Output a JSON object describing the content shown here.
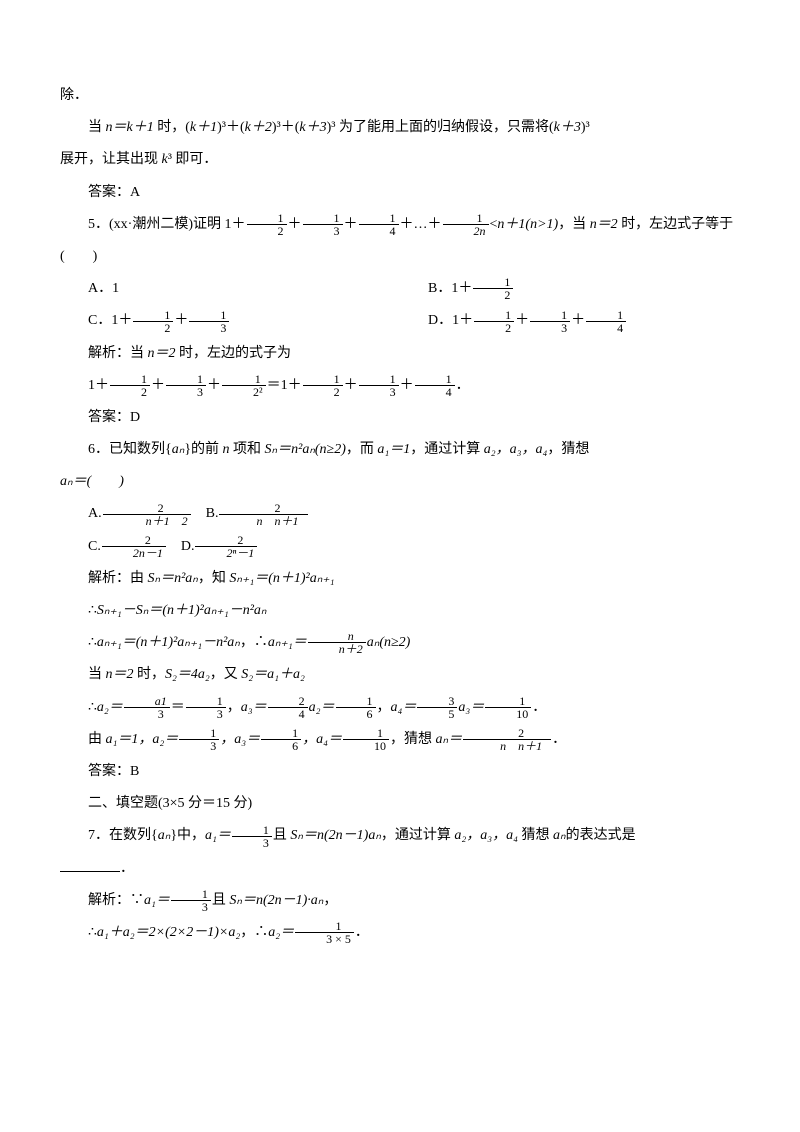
{
  "p1": "除．",
  "p2a": "当 ",
  "p2_nk1": "n＝k＋1 ",
  "p2b": "时，(",
  "p2_k1": "k＋1",
  "p2c": ")³＋(",
  "p2_k2": "k＋2",
  "p2d": ")³＋(",
  "p2_k3": "k＋3",
  "p2e": ")³ 为了能用上面的归纳假设，只需将(",
  "p2_k4": "k＋3",
  "p2f": ")³",
  "p3a": "展开，让其出现 ",
  "p3_k": "k",
  "p3b": "³ 即可．",
  "ans4": "答案：A",
  "q5a": "5．(xx·潮州二模)证明 1＋",
  "q5b": "＋",
  "q5c": "＋",
  "q5d": "＋…＋",
  "q5e": "<",
  "q5_n1": "n＋1(n>1)",
  "q5f": "，当 ",
  "q5_n2": "n＝2 ",
  "q5g": "时，左边式子等于(　　)",
  "q5_optA": "A．1",
  "q5_optB": "B．1＋",
  "q5_optC": "C．1＋",
  "q5_optC2": "＋",
  "q5_optD": "D．1＋",
  "q5_optD2": "＋",
  "q5_optD3": "＋",
  "q5_sol1": "解析：当 ",
  "q5_sol_n": "n＝2 ",
  "q5_sol2": "时，左边的式子为",
  "q5_sol3": "1＋",
  "q5_sol4": "＋",
  "q5_sol5": "＋",
  "q5_sol6": "＝1＋",
  "q5_sol7": "＋",
  "q5_sol8": "＋",
  "q5_sol9": "．",
  "ans5": "答案：D",
  "q6a": "6．已知数列{",
  "q6_an": "aₙ",
  "q6b": "}的前 ",
  "q6_n": "n ",
  "q6c": "项和 ",
  "q6_sn": "Sₙ＝n²aₙ(n≥2)",
  "q6d": "，而 ",
  "q6_a1": "a₁＝1",
  "q6e": "，通过计算 ",
  "q6_a234": "a₂，a₃，a₄",
  "q6f": "，猜想",
  "q6g": "aₙ＝(　　)",
  "q6_optA": "A.",
  "q6_optB": "B.",
  "q6_optC": "C.",
  "q6_optD": "D.",
  "q6_sol1a": "解析：由 ",
  "q6_sol1b": "Sₙ＝n²aₙ",
  "q6_sol1c": "，知 ",
  "q6_sol1d": "Sₙ₊₁＝(n＋1)²aₙ₊₁",
  "q6_sol2a": "∴",
  "q6_sol2b": "Sₙ₊₁－Sₙ＝(n＋1)²aₙ₊₁－n²aₙ",
  "q6_sol3a": "∴",
  "q6_sol3b": "aₙ₊₁＝(n＋1)²aₙ₊₁－n²aₙ",
  "q6_sol3c": "，∴",
  "q6_sol3d": "aₙ₊₁＝",
  "q6_sol3e": "aₙ(n≥2)",
  "q6_sol4a": "当 ",
  "q6_sol4b": "n＝2 ",
  "q6_sol4c": "时，",
  "q6_sol4d": "S₂＝4a₂",
  "q6_sol4e": "，又 ",
  "q6_sol4f": "S₂＝a₁＋a₂",
  "q6_sol5a": "∴",
  "q6_sol5b": "a₂＝",
  "q6_sol5c": "＝",
  "q6_sol5d": "，",
  "q6_sol5e": "a₃＝",
  "q6_sol5f": "a₂＝",
  "q6_sol5g": "，",
  "q6_sol5h": "a₄＝",
  "q6_sol5i": "a₃＝",
  "q6_sol5j": "．",
  "q6_sol6a": "由 ",
  "q6_sol6b": "a₁＝1，a₂＝",
  "q6_sol6c": "，a₃＝",
  "q6_sol6d": "，a₄＝",
  "q6_sol6e": "，猜想 ",
  "q6_sol6f": "aₙ＝",
  "q6_sol6g": "．",
  "ans6": "答案：B",
  "sec2": "二、填空题(3×5 分＝15 分)",
  "q7a": "7．在数列{",
  "q7b": "}中，",
  "q7c": "a₁＝",
  "q7d": "且 ",
  "q7e": "Sₙ＝n(2n－1)aₙ",
  "q7f": "，通过计算 ",
  "q7g": "a₂，a₃，a₄ ",
  "q7h": "猜想 ",
  "q7i": "aₙ",
  "q7j": "的表达式是",
  "q7k": "．",
  "q7_sol1a": "解析：∵",
  "q7_sol1b": "a₁＝",
  "q7_sol1c": "且 ",
  "q7_sol1d": "Sₙ＝n(2n－1)·aₙ",
  "q7_sol1e": "，",
  "q7_sol2a": "∴",
  "q7_sol2b": "a₁＋a₂＝2×(2×2－1)×a₂",
  "q7_sol2c": "，∴",
  "q7_sol2d": "a₂＝",
  "q7_sol2e": "．",
  "frac_1_2": {
    "n": "1",
    "d": "2"
  },
  "frac_1_3": {
    "n": "1",
    "d": "3"
  },
  "frac_1_4": {
    "n": "1",
    "d": "4"
  },
  "frac_1_2n": {
    "n": "1",
    "d": "2n"
  },
  "frac_1_22": {
    "n": "1",
    "d": "2²"
  },
  "frac_2_n1sq": {
    "n": "2",
    "d": "　n＋1　2"
  },
  "frac_2_nn1": {
    "n": "2",
    "d": "n　n＋1　"
  },
  "frac_2_2nm1": {
    "n": "2",
    "d": "2n－1"
  },
  "frac_2_2n_m1": {
    "n": "2",
    "d": "2ⁿ－1"
  },
  "frac_n_n2": {
    "n": "n",
    "d": "n＋2"
  },
  "frac_a1_3": {
    "n": "a1",
    "d": "3"
  },
  "frac_2_4": {
    "n": "2",
    "d": "4"
  },
  "frac_1_6": {
    "n": "1",
    "d": "6"
  },
  "frac_3_5": {
    "n": "3",
    "d": "5"
  },
  "frac_1_10": {
    "n": "1",
    "d": "10"
  },
  "frac_2_nn1b": {
    "n": "2",
    "d": "n　n＋1　"
  },
  "frac_1_35": {
    "n": "1",
    "d": "3 × 5"
  }
}
